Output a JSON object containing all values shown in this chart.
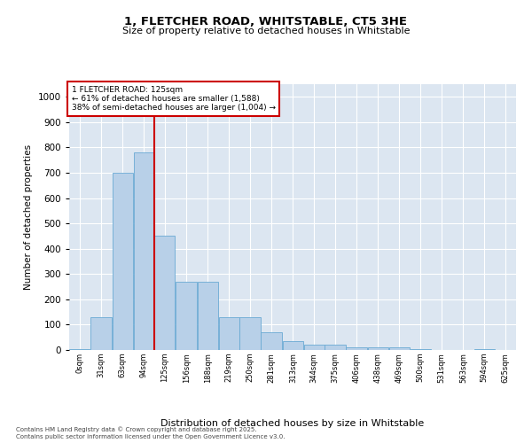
{
  "title_line1": "1, FLETCHER ROAD, WHITSTABLE, CT5 3HE",
  "title_line2": "Size of property relative to detached houses in Whitstable",
  "xlabel": "Distribution of detached houses by size in Whitstable",
  "ylabel": "Number of detached properties",
  "annotation_line1": "1 FLETCHER ROAD: 125sqm",
  "annotation_line2": "← 61% of detached houses are smaller (1,588)",
  "annotation_line3": "38% of semi-detached houses are larger (1,004) →",
  "footer_line1": "Contains HM Land Registry data © Crown copyright and database right 2025.",
  "footer_line2": "Contains public sector information licensed under the Open Government Licence v3.0.",
  "bar_color": "#b8d0e8",
  "bar_edge_color": "#6aaad4",
  "background_color": "#dce6f1",
  "grid_color": "#ffffff",
  "red_line_x": 125,
  "red_line_color": "#cc0000",
  "annotation_box_color": "#cc0000",
  "categories": [
    "0sqm",
    "31sqm",
    "63sqm",
    "94sqm",
    "125sqm",
    "156sqm",
    "188sqm",
    "219sqm",
    "250sqm",
    "281sqm",
    "313sqm",
    "344sqm",
    "375sqm",
    "406sqm",
    "438sqm",
    "469sqm",
    "500sqm",
    "531sqm",
    "563sqm",
    "594sqm",
    "625sqm"
  ],
  "bin_edges": [
    0,
    31,
    63,
    94,
    125,
    156,
    188,
    219,
    250,
    281,
    313,
    344,
    375,
    406,
    438,
    469,
    500,
    531,
    563,
    594,
    625
  ],
  "values": [
    5,
    130,
    700,
    780,
    450,
    270,
    270,
    130,
    130,
    70,
    35,
    20,
    20,
    10,
    10,
    10,
    5,
    0,
    0,
    5,
    0
  ],
  "ylim": [
    0,
    1050
  ],
  "yticks": [
    0,
    100,
    200,
    300,
    400,
    500,
    600,
    700,
    800,
    900,
    1000
  ]
}
